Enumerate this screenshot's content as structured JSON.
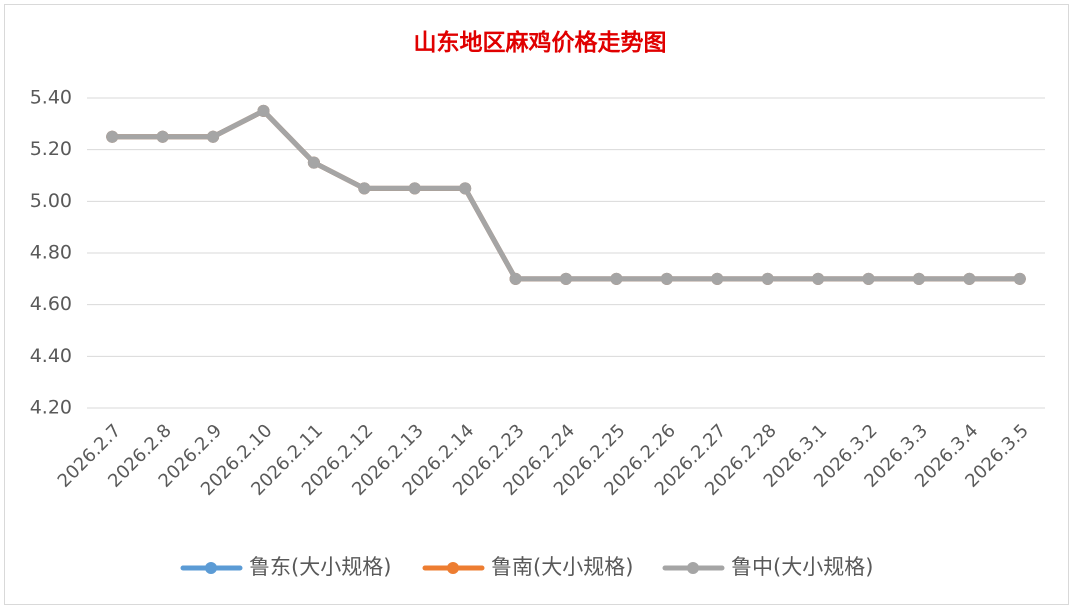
{
  "chart_data": {
    "type": "line",
    "title": "山东地区麻鸡价格走势图",
    "categories": [
      "2026.2.7",
      "2026.2.8",
      "2026.2.9",
      "2026.2.10",
      "2026.2.11",
      "2026.2.12",
      "2026.2.13",
      "2026.2.14",
      "2026.2.23",
      "2026.2.24",
      "2026.2.25",
      "2026.2.26",
      "2026.2.27",
      "2026.2.28",
      "2026.3.1",
      "2026.3.2",
      "2026.3.3",
      "2026.3.4",
      "2026.3.5"
    ],
    "series": [
      {
        "name": "鲁东(大小规格)",
        "color": "#5b9bd5",
        "values": [
          5.25,
          5.25,
          5.25,
          5.35,
          5.15,
          5.05,
          5.05,
          5.05,
          4.7,
          4.7,
          4.7,
          4.7,
          4.7,
          4.7,
          4.7,
          4.7,
          4.7,
          4.7,
          4.7
        ]
      },
      {
        "name": "鲁南(大小规格)",
        "color": "#ed7d31",
        "values": [
          5.25,
          5.25,
          5.25,
          5.35,
          5.15,
          5.05,
          5.05,
          5.05,
          4.7,
          4.7,
          4.7,
          4.7,
          4.7,
          4.7,
          4.7,
          4.7,
          4.7,
          4.7,
          4.7
        ]
      },
      {
        "name": "鲁中(大小规格)",
        "color": "#a5a5a5",
        "values": [
          5.25,
          5.25,
          5.25,
          5.35,
          5.15,
          5.05,
          5.05,
          5.05,
          4.7,
          4.7,
          4.7,
          4.7,
          4.7,
          4.7,
          4.7,
          4.7,
          4.7,
          4.7,
          4.7
        ]
      }
    ],
    "ylim": [
      4.2,
      5.4
    ],
    "yticks": [
      {
        "value": 4.2,
        "label": "4.20"
      },
      {
        "value": 4.4,
        "label": "4.40"
      },
      {
        "value": 4.6,
        "label": "4.60"
      },
      {
        "value": 4.8,
        "label": "4.80"
      },
      {
        "value": 5.0,
        "label": "5.00"
      },
      {
        "value": 5.2,
        "label": "5.20"
      },
      {
        "value": 5.4,
        "label": "5.40"
      }
    ],
    "grid": true,
    "legend": "bottom"
  }
}
